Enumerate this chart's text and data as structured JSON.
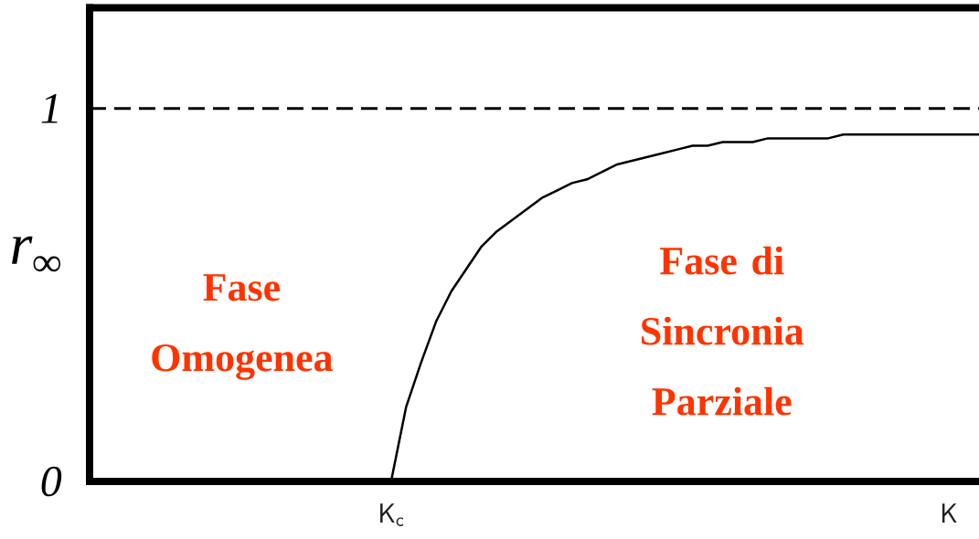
{
  "chart_data": {
    "type": "line",
    "ylabel": "r$_{∞}$",
    "categories": [
      null,
      null,
      null,
      null,
      null,
      null,
      null,
      null,
      null,
      null,
      null,
      null,
      null,
      null,
      null,
      null,
      null,
      null,
      null,
      "K$_{c}$",
      null,
      null,
      null,
      null,
      null,
      null,
      null,
      null,
      null,
      null,
      null,
      null,
      null,
      null,
      null,
      null,
      null,
      null,
      null,
      null,
      null,
      null,
      null,
      null,
      null,
      null,
      null,
      null,
      null,
      null,
      null,
      null,
      null,
      null,
      null,
      null,
      "K",
      null,
      null
    ],
    "ylim": [
      0,
      1.27
    ],
    "yticks": [
      0,
      1
    ],
    "series": [
      {
        "color": "#000000",
        "values": [
          null,
          null,
          null,
          null,
          null,
          null,
          null,
          null,
          null,
          null,
          null,
          null,
          null,
          null,
          null,
          null,
          null,
          null,
          null,
          0,
          0.2,
          0.32,
          0.43,
          0.51,
          0.57,
          0.63,
          0.67,
          0.7,
          0.73,
          0.76,
          0.78,
          0.8,
          0.81,
          0.83,
          0.85,
          0.86,
          0.87,
          0.88,
          0.89,
          0.9,
          0.9,
          0.91,
          0.91,
          0.91,
          0.92,
          0.92,
          0.92,
          0.92,
          0.92,
          0.93,
          0.93,
          0.93,
          0.93,
          0.93,
          0.93,
          0.93,
          0.93,
          0.93,
          0.93
        ]
      }
    ],
    "ref_lines": [
      {
        "axis": "y",
        "value": 1,
        "line_style": "dashed",
        "color": "#000000"
      }
    ],
    "annotations": [
      "Fase Omogenea",
      "Fase di Sincronia Parziale"
    ]
  }
}
